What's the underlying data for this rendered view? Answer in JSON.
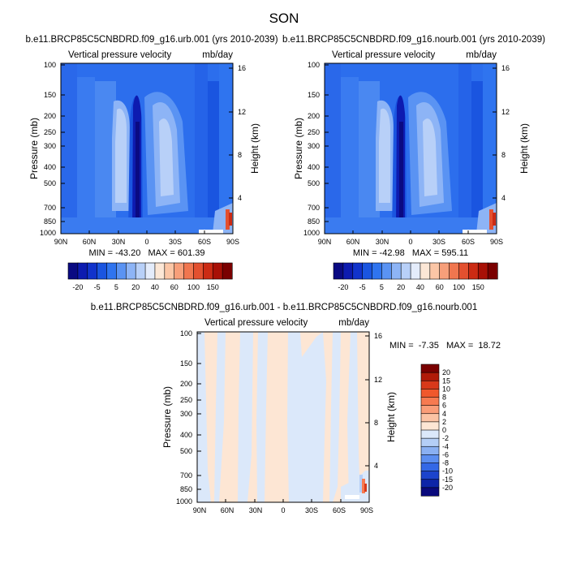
{
  "page_title": "SON",
  "chart_data": [
    {
      "type": "heatmap",
      "title": "b.e11.BRCP85C5CNBDRD.f09_g16.urb.001 (yrs 2010-2039)",
      "left_string": "Vertical pressure velocity",
      "right_string": "mb/day",
      "ylabel": "Pressure (mb)",
      "y2label": "Height (km)",
      "x_ticks": [
        "90N",
        "60N",
        "30N",
        "0",
        "30S",
        "60S",
        "90S"
      ],
      "y_ticks": [
        "100",
        "150",
        "200",
        "250",
        "300",
        "400",
        "500",
        "700",
        "850",
        "1000"
      ],
      "y2_ticks": [
        "16",
        "12",
        "8",
        "4"
      ],
      "stats": "MIN = -43.20   MAX = 601.39",
      "min": -43.2,
      "max": 601.39,
      "colorbar_labels": [
        "-20",
        "-5",
        "5",
        "20",
        "40",
        "60",
        "100",
        "150"
      ],
      "colorbar_colors": [
        "#0a0a82",
        "#0d1bb0",
        "#1133cc",
        "#1a55e0",
        "#2f74ef",
        "#5a93f3",
        "#8db4f6",
        "#b8d0f8",
        "#e4ecfb",
        "#fce7d6",
        "#fbc6a6",
        "#f79f7a",
        "#f0764f",
        "#e3502f",
        "#cc2b14",
        "#a81006",
        "#7a0000"
      ]
    },
    {
      "type": "heatmap",
      "title": "b.e11.BRCP85C5CNBDRD.f09_g16.nourb.001 (yrs 2010-2039)",
      "left_string": "Vertical pressure velocity",
      "right_string": "mb/day",
      "ylabel": "Pressure (mb)",
      "y2label": "Height (km)",
      "x_ticks": [
        "90N",
        "60N",
        "30N",
        "0",
        "30S",
        "60S",
        "90S"
      ],
      "y_ticks": [
        "100",
        "150",
        "200",
        "250",
        "300",
        "400",
        "500",
        "700",
        "850",
        "1000"
      ],
      "y2_ticks": [
        "16",
        "12",
        "8",
        "4"
      ],
      "stats": "MIN = -42.98   MAX = 595.11",
      "min": -42.98,
      "max": 595.11,
      "colorbar_labels": [
        "-20",
        "-5",
        "5",
        "20",
        "40",
        "60",
        "100",
        "150"
      ],
      "colorbar_colors": [
        "#0a0a82",
        "#0d1bb0",
        "#1133cc",
        "#1a55e0",
        "#2f74ef",
        "#5a93f3",
        "#8db4f6",
        "#b8d0f8",
        "#e4ecfb",
        "#fce7d6",
        "#fbc6a6",
        "#f79f7a",
        "#f0764f",
        "#e3502f",
        "#cc2b14",
        "#a81006",
        "#7a0000"
      ]
    },
    {
      "type": "heatmap",
      "title": "b.e11.BRCP85C5CNBDRD.f09_g16.urb.001 - b.e11.BRCP85C5CNBDRD.f09_g16.nourb.001",
      "left_string": "Vertical pressure velocity",
      "right_string": "mb/day",
      "ylabel": "Pressure (mb)",
      "y2label": "Height (km)",
      "x_ticks": [
        "90N",
        "60N",
        "30N",
        "0",
        "30S",
        "60S",
        "90S"
      ],
      "y_ticks": [
        "100",
        "150",
        "200",
        "250",
        "300",
        "400",
        "500",
        "700",
        "850",
        "1000"
      ],
      "y2_ticks": [
        "16",
        "12",
        "8",
        "4"
      ],
      "stats": "MIN =  -7.35   MAX =  18.72",
      "min": -7.35,
      "max": 18.72,
      "colorbar_labels": [
        "20",
        "15",
        "10",
        "8",
        "6",
        "4",
        "2",
        "0",
        "-2",
        "-4",
        "-6",
        "-8",
        "-10",
        "-15",
        "-20"
      ],
      "colorbar_colors": [
        "#7a0000",
        "#b01a08",
        "#d8391a",
        "#f0582c",
        "#f77a50",
        "#fa9d78",
        "#fbc3a4",
        "#fde6d4",
        "#dbe8fa",
        "#b4cef6",
        "#8ab0f2",
        "#5c8ef0",
        "#3468e6",
        "#1c44cc",
        "#0d25a8",
        "#0a0a7c"
      ]
    }
  ]
}
